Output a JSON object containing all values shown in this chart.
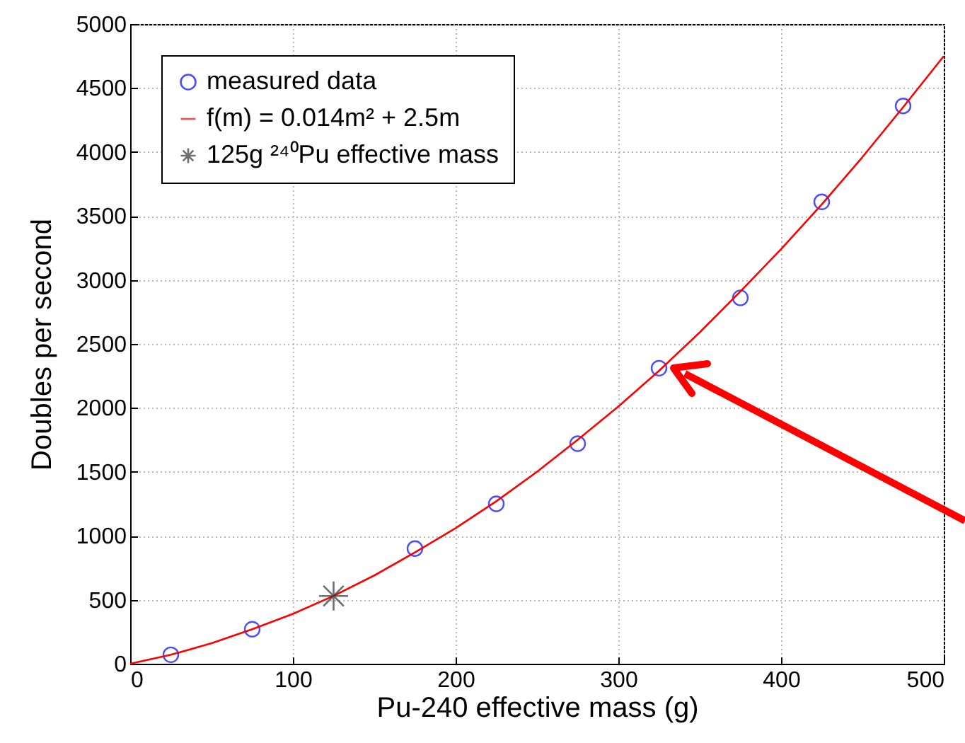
{
  "chart_data": {
    "type": "scatter",
    "xlabel": "Pu-240 effective mass (g)",
    "ylabel": "Doubles per second",
    "xlim": [
      0,
      500
    ],
    "xticks": [
      0,
      100,
      200,
      300,
      400,
      500
    ],
    "ylim": [
      0,
      5000
    ],
    "yticks": [
      0,
      500,
      1000,
      1500,
      2000,
      2500,
      3000,
      3500,
      4000,
      4500,
      5000
    ],
    "grid": true,
    "legend": "top left",
    "series": [
      {
        "name": "measured data",
        "marker": "circle",
        "color": "#0000ff",
        "x": [
          25,
          75,
          175,
          225,
          275,
          325,
          375,
          425,
          475
        ],
        "values": [
          70,
          270,
          900,
          1250,
          1720,
          2310,
          2860,
          3610,
          4360
        ]
      },
      {
        "name": "f(m) =  0.014m² + 2.5m",
        "type": "line",
        "color": "#ff0000",
        "x": [
          0,
          25,
          50,
          75,
          100,
          125,
          150,
          175,
          200,
          225,
          250,
          275,
          300,
          325,
          350,
          375,
          400,
          425,
          450,
          475,
          500
        ],
        "values": [
          0,
          70,
          160,
          270,
          390,
          530,
          690,
          870,
          1060,
          1270,
          1500,
          1750,
          2010,
          2290,
          2590,
          2910,
          3240,
          3590,
          3960,
          4350,
          4750
        ]
      },
      {
        "name": "125g ²⁴⁰Pu effective mass",
        "marker": "cross",
        "color": "#333333",
        "x": [
          125
        ],
        "values": [
          530
        ]
      }
    ]
  }
}
